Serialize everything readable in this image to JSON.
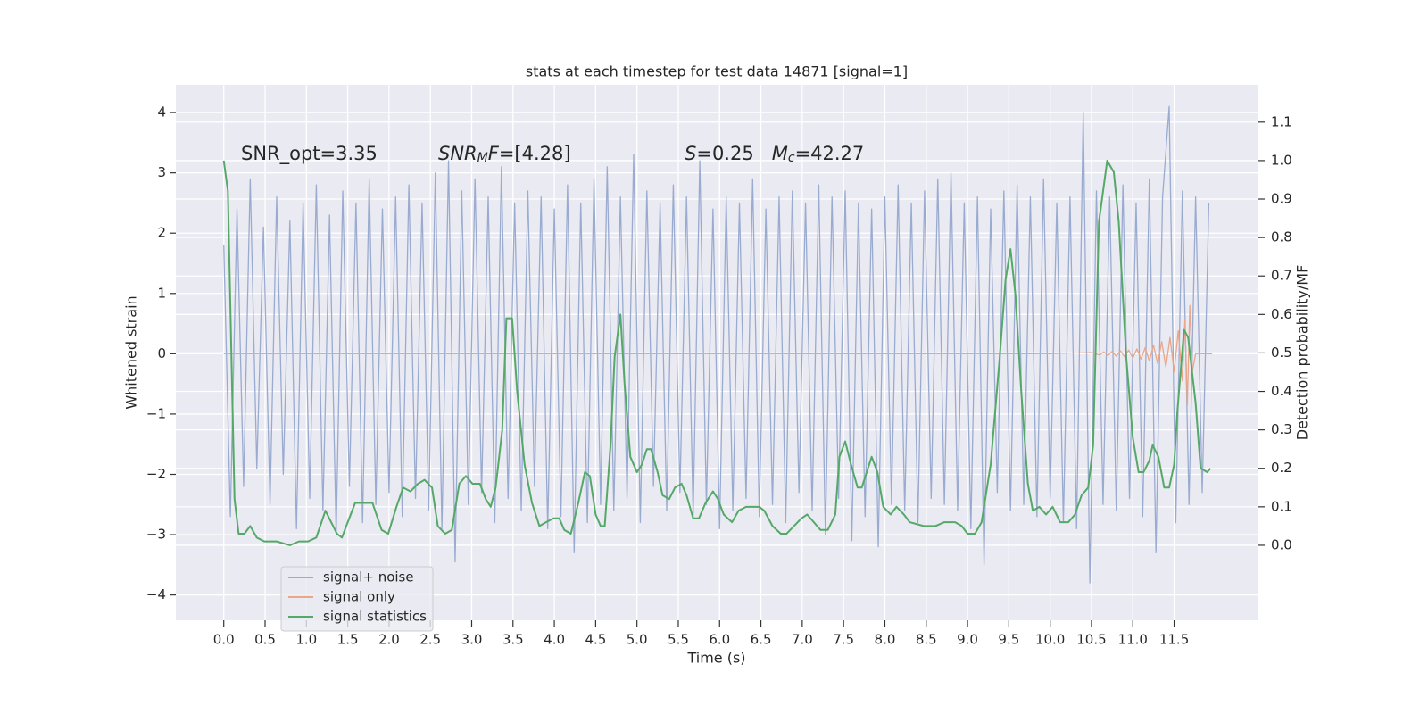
{
  "chart_data": {
    "type": "line",
    "title": "stats at each timestep for test data 14871 [signal=1]",
    "xlabel": "Time (s)",
    "ylabel": "Whitened strain",
    "y2label": "Detection probability/MF",
    "xlim": [
      -0.58,
      12.52
    ],
    "ylim": [
      -4.42,
      4.46
    ],
    "y2lim": [
      -0.195,
      1.197
    ],
    "xticks": [
      {
        "value": 0,
        "label": "0.0"
      },
      0.5,
      {
        "value": 1,
        "label": "1.0"
      },
      1.5,
      {
        "value": 2,
        "label": "2.0"
      },
      2.5,
      {
        "value": 3,
        "label": "3.0"
      },
      3.5,
      {
        "value": 4,
        "label": "4.0"
      },
      4.5,
      {
        "value": 5,
        "label": "5.0"
      },
      5.5,
      {
        "value": 6,
        "label": "6.0"
      },
      6.5,
      {
        "value": 7,
        "label": "7.0"
      },
      7.5,
      {
        "value": 8,
        "label": "8.0"
      },
      8.5,
      {
        "value": 9,
        "label": "9.0"
      },
      9.5,
      {
        "value": 10,
        "label": "10.0"
      },
      10.5,
      {
        "value": 11,
        "label": "11.0"
      },
      11.5
    ],
    "yticks": [
      {
        "value": -4,
        "label": "−4"
      },
      {
        "value": -3,
        "label": "−3"
      },
      {
        "value": -2,
        "label": "−2"
      },
      {
        "value": -1,
        "label": "−1"
      },
      0,
      1,
      2,
      3,
      4
    ],
    "y2ticks": [
      {
        "value": 0,
        "label": "0.0"
      },
      0.1,
      0.2,
      0.3,
      0.4,
      0.5,
      0.6,
      0.7,
      0.8,
      0.9,
      {
        "value": 1,
        "label": "1.0"
      },
      1.1
    ],
    "grid": true,
    "legend": "lower left",
    "annotations": [
      {
        "parts": [
          {
            "text": "SNR_opt=3.35"
          }
        ]
      },
      {
        "parts": [
          {
            "text": "SNR",
            "italic": true
          },
          {
            "text": "M",
            "italic": true,
            "sub": true
          },
          {
            "text": "F",
            "italic": true
          },
          {
            "text": "=[4.28]"
          }
        ]
      },
      {
        "parts": [
          {
            "text": "S",
            "italic": true
          },
          {
            "text": "=0.25   "
          },
          {
            "text": "M",
            "italic": true
          },
          {
            "text": "c",
            "italic": true,
            "sub": true
          },
          {
            "text": "=42.27"
          }
        ]
      }
    ],
    "series": [
      {
        "name": "signal+ noise",
        "color": "#9aabd0",
        "x": [
          0,
          0.08,
          0.16,
          0.24,
          0.32,
          0.4,
          0.48,
          0.56,
          0.64,
          0.72,
          0.8,
          0.88,
          0.96,
          1.04,
          1.12,
          1.2,
          1.28,
          1.36,
          1.44,
          1.52,
          1.6,
          1.68,
          1.76,
          1.84,
          1.92,
          2,
          2.08,
          2.16,
          2.24,
          2.32,
          2.4,
          2.48,
          2.56,
          2.64,
          2.72,
          2.8,
          2.88,
          2.96,
          3.04,
          3.12,
          3.2,
          3.28,
          3.36,
          3.44,
          3.52,
          3.6,
          3.68,
          3.76,
          3.84,
          3.92,
          4,
          4.08,
          4.16,
          4.24,
          4.32,
          4.4,
          4.48,
          4.56,
          4.64,
          4.72,
          4.8,
          4.88,
          4.96,
          5.04,
          5.12,
          5.2,
          5.28,
          5.36,
          5.44,
          5.52,
          5.6,
          5.68,
          5.76,
          5.84,
          5.92,
          6,
          6.08,
          6.16,
          6.24,
          6.32,
          6.4,
          6.48,
          6.56,
          6.64,
          6.72,
          6.8,
          6.88,
          6.96,
          7.04,
          7.12,
          7.2,
          7.28,
          7.36,
          7.44,
          7.52,
          7.6,
          7.68,
          7.76,
          7.84,
          7.92,
          8,
          8.08,
          8.16,
          8.24,
          8.32,
          8.4,
          8.48,
          8.56,
          8.64,
          8.72,
          8.8,
          8.88,
          8.96,
          9.04,
          9.12,
          9.2,
          9.28,
          9.36,
          9.44,
          9.52,
          9.6,
          9.68,
          9.76,
          9.84,
          9.92,
          10,
          10.08,
          10.16,
          10.24,
          10.32,
          10.4,
          10.48,
          10.56,
          10.64,
          10.72,
          10.8,
          10.88,
          10.96,
          11.04,
          11.12,
          11.2,
          11.28,
          11.36,
          11.44,
          11.52,
          11.6,
          11.68,
          11.76,
          11.84,
          11.92
        ],
        "values": [
          1.8,
          -2.7,
          2.4,
          -2.2,
          2.9,
          -1.9,
          2.1,
          -2.5,
          2.6,
          -2.0,
          2.2,
          -2.9,
          2.5,
          -2.4,
          2.8,
          -2.6,
          2.3,
          -3.0,
          2.7,
          -2.2,
          2.5,
          -2.8,
          2.9,
          -2.5,
          2.4,
          -2.3,
          2.6,
          -2.7,
          2.8,
          -2.4,
          2.5,
          -2.6,
          3.0,
          -2.9,
          3.2,
          -3.45,
          2.7,
          -2.5,
          2.9,
          -2.3,
          2.6,
          -2.8,
          3.1,
          -2.4,
          2.5,
          -2.6,
          2.7,
          -2.2,
          2.6,
          -2.9,
          2.4,
          -2.7,
          2.8,
          -3.3,
          2.5,
          -2.8,
          2.9,
          -2.5,
          3.1,
          -2.6,
          2.6,
          -2.4,
          3.3,
          -2.8,
          2.7,
          -2.2,
          2.5,
          -2.6,
          2.8,
          -2.3,
          2.6,
          -2.7,
          3.2,
          -2.5,
          2.4,
          -2.9,
          2.6,
          -2.6,
          2.5,
          -2.4,
          2.9,
          -2.7,
          2.4,
          -2.5,
          2.6,
          -2.8,
          2.7,
          -2.3,
          2.5,
          -2.6,
          2.8,
          -3.0,
          2.6,
          -2.4,
          2.7,
          -3.1,
          2.5,
          -2.7,
          2.4,
          -3.2,
          2.6,
          -2.5,
          2.8,
          -2.6,
          2.5,
          -2.8,
          2.7,
          -2.4,
          2.9,
          -2.5,
          3.0,
          -2.6,
          2.5,
          -2.9,
          2.6,
          -3.5,
          2.4,
          -2.3,
          2.7,
          -2.6,
          2.8,
          -2.5,
          2.6,
          -2.7,
          2.9,
          -2.4,
          2.5,
          -2.8,
          2.6,
          -2.9,
          4.0,
          -3.8,
          2.7,
          -2.5,
          2.6,
          -2.6,
          2.8,
          -2.4,
          2.5,
          -2.7,
          2.9,
          -3.3,
          2.6,
          4.1,
          -2.8,
          2.7,
          -2.5,
          2.6,
          -2.3,
          2.5
        ]
      },
      {
        "name": "signal only",
        "color": "#e8a68a",
        "x": [
          0,
          10.0,
          10.5,
          10.6,
          10.65,
          10.7,
          10.75,
          10.8,
          10.85,
          10.9,
          10.95,
          11.0,
          11.05,
          11.1,
          11.15,
          11.2,
          11.25,
          11.3,
          11.35,
          11.4,
          11.45,
          11.5,
          11.55,
          11.6,
          11.63,
          11.66,
          11.69,
          11.72,
          11.76,
          11.96
        ],
        "values": [
          0,
          0,
          0.02,
          -0.02,
          0.03,
          -0.03,
          0.04,
          -0.04,
          0.05,
          -0.05,
          0.06,
          -0.07,
          0.08,
          -0.09,
          0.1,
          -0.12,
          0.14,
          -0.16,
          0.2,
          -0.22,
          0.27,
          -0.3,
          0.38,
          -0.45,
          0.55,
          -0.85,
          0.8,
          -0.3,
          0,
          0
        ]
      },
      {
        "name": "signal statistics",
        "color": "#55a868",
        "axis": "y2",
        "x": [
          0,
          0.05,
          0.13,
          0.18,
          0.25,
          0.32,
          0.4,
          0.49,
          0.64,
          0.8,
          0.91,
          1.02,
          1.12,
          1.23,
          1.37,
          1.43,
          1.5,
          1.59,
          1.66,
          1.75,
          1.8,
          1.91,
          1.99,
          2.09,
          2.17,
          2.26,
          2.35,
          2.43,
          2.52,
          2.59,
          2.68,
          2.76,
          2.85,
          2.93,
          3.01,
          3.1,
          3.17,
          3.23,
          3.29,
          3.37,
          3.42,
          3.49,
          3.55,
          3.64,
          3.73,
          3.82,
          3.9,
          3.99,
          4.06,
          4.12,
          4.2,
          4.29,
          4.37,
          4.43,
          4.5,
          4.56,
          4.61,
          4.68,
          4.73,
          4.8,
          4.85,
          4.92,
          5.0,
          5.06,
          5.12,
          5.17,
          5.25,
          5.31,
          5.39,
          5.46,
          5.54,
          5.6,
          5.68,
          5.75,
          5.83,
          5.92,
          5.98,
          6.05,
          6.15,
          6.23,
          6.32,
          6.4,
          6.48,
          6.54,
          6.64,
          6.74,
          6.81,
          6.9,
          6.99,
          7.06,
          7.14,
          7.22,
          7.31,
          7.4,
          7.45,
          7.52,
          7.59,
          7.67,
          7.72,
          7.78,
          7.84,
          7.91,
          7.98,
          8.07,
          8.14,
          8.23,
          8.3,
          8.47,
          8.61,
          8.72,
          8.85,
          8.93,
          9.0,
          9.09,
          9.17,
          9.28,
          9.39,
          9.46,
          9.52,
          9.58,
          9.65,
          9.73,
          9.79,
          9.87,
          9.95,
          10.03,
          10.12,
          10.22,
          10.3,
          10.38,
          10.46,
          10.52,
          10.59,
          10.69,
          10.77,
          10.83,
          10.92,
          11.0,
          11.07,
          11.13,
          11.2,
          11.24,
          11.31,
          11.38,
          11.44,
          11.5,
          11.54,
          11.62,
          11.67,
          11.76,
          11.82,
          11.9,
          11.94
        ],
        "values": [
          1.0,
          0.92,
          0.12,
          0.03,
          0.03,
          0.05,
          0.02,
          0.01,
          0.01,
          0.0,
          0.01,
          0.01,
          0.02,
          0.09,
          0.03,
          0.02,
          0.06,
          0.11,
          0.11,
          0.11,
          0.11,
          0.04,
          0.03,
          0.1,
          0.15,
          0.14,
          0.16,
          0.17,
          0.15,
          0.05,
          0.03,
          0.04,
          0.16,
          0.18,
          0.16,
          0.16,
          0.12,
          0.1,
          0.15,
          0.3,
          0.59,
          0.59,
          0.4,
          0.21,
          0.11,
          0.05,
          0.06,
          0.07,
          0.07,
          0.04,
          0.03,
          0.11,
          0.19,
          0.18,
          0.08,
          0.05,
          0.05,
          0.26,
          0.49,
          0.6,
          0.42,
          0.23,
          0.19,
          0.21,
          0.25,
          0.25,
          0.19,
          0.13,
          0.12,
          0.15,
          0.16,
          0.13,
          0.07,
          0.07,
          0.11,
          0.14,
          0.12,
          0.08,
          0.06,
          0.09,
          0.1,
          0.1,
          0.1,
          0.09,
          0.05,
          0.03,
          0.03,
          0.05,
          0.07,
          0.08,
          0.06,
          0.04,
          0.04,
          0.08,
          0.23,
          0.27,
          0.21,
          0.15,
          0.15,
          0.19,
          0.23,
          0.19,
          0.1,
          0.08,
          0.1,
          0.08,
          0.06,
          0.05,
          0.05,
          0.06,
          0.06,
          0.05,
          0.03,
          0.03,
          0.06,
          0.21,
          0.49,
          0.69,
          0.77,
          0.65,
          0.4,
          0.16,
          0.09,
          0.1,
          0.08,
          0.1,
          0.06,
          0.06,
          0.08,
          0.13,
          0.15,
          0.26,
          0.84,
          1.0,
          0.97,
          0.84,
          0.49,
          0.28,
          0.19,
          0.19,
          0.22,
          0.26,
          0.23,
          0.15,
          0.15,
          0.21,
          0.35,
          0.56,
          0.54,
          0.37,
          0.2,
          0.19,
          0.2
        ]
      }
    ]
  }
}
